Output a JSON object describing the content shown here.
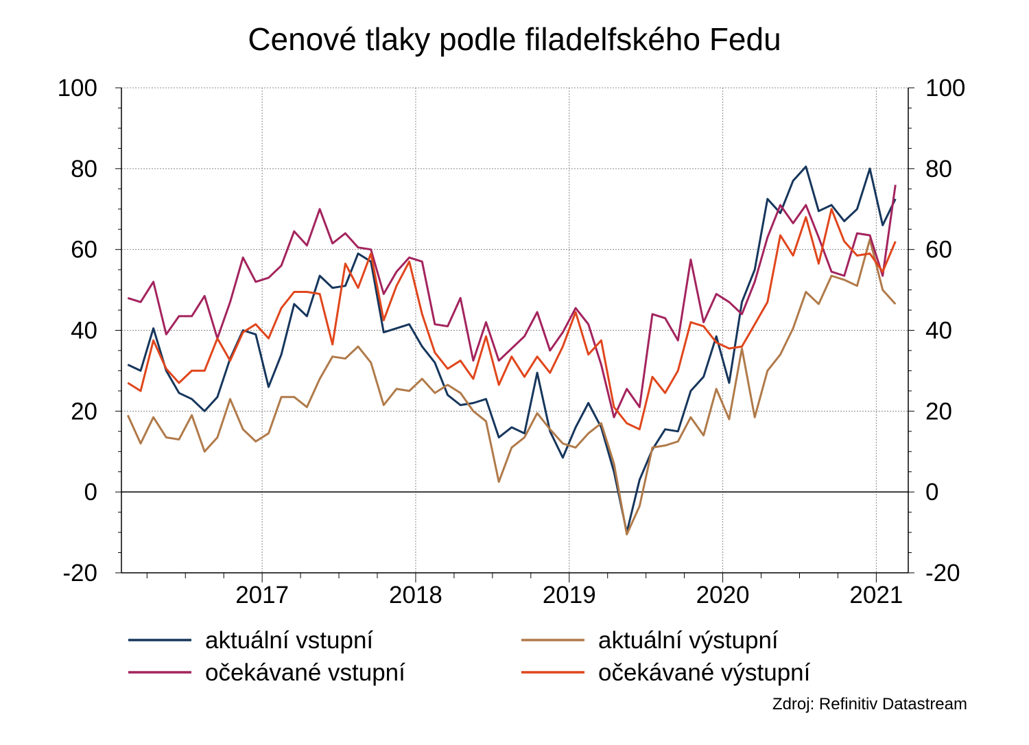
{
  "chart_data": {
    "type": "line",
    "title": "Cenové tlaky podle filadelfského Fedu",
    "source": "Zdroj: Refinitiv Datastream",
    "ylim": [
      -20,
      100
    ],
    "yticks": [
      "100",
      "80",
      "60",
      "40",
      "20",
      "0",
      "-20"
    ],
    "ytick_values": [
      100,
      80,
      60,
      40,
      20,
      0,
      -20
    ],
    "year_labels": [
      "2017",
      "2018",
      "2019",
      "2020",
      "2021"
    ],
    "grid": true,
    "legend_position": "bottom",
    "x_start": "2016-08",
    "x_end": "2021-08",
    "series": [
      {
        "name": "aktuální vstupní",
        "color": "#16365C",
        "values": [
          31.5,
          30,
          40.5,
          30,
          24.5,
          23,
          20,
          23.5,
          33,
          40,
          39,
          26,
          34,
          46.5,
          43.5,
          53.5,
          50.5,
          51,
          59,
          57,
          39.5,
          40.5,
          41.5,
          36,
          32,
          24,
          21.5,
          22,
          23,
          13.5,
          16,
          14.5,
          29.5,
          15,
          8.5,
          16,
          22,
          16,
          5,
          -10,
          3,
          10.5,
          15.5,
          15,
          25,
          28.5,
          38.5,
          27,
          47,
          55,
          72.5,
          69,
          77,
          80.5,
          69.5,
          71,
          67,
          70,
          80,
          66,
          72.5
        ]
      },
      {
        "name": "aktuální výstupní",
        "color": "#B07A4A",
        "values": [
          19,
          12,
          18.5,
          13.5,
          13,
          19,
          10,
          13.5,
          23,
          15.5,
          12.5,
          14.5,
          23.5,
          23.5,
          21,
          28,
          33.5,
          33,
          36,
          32,
          21.5,
          25.5,
          25,
          28,
          24.5,
          26.5,
          24.5,
          20,
          17.5,
          2.5,
          11,
          13.5,
          19.5,
          15.5,
          12,
          11,
          14.5,
          17,
          7,
          -10.5,
          -3.5,
          11,
          11.5,
          12.5,
          18.5,
          14,
          25.5,
          18,
          35.5,
          18.5,
          30,
          34,
          40.5,
          49.5,
          46.5,
          53.5,
          52.5,
          51,
          62.5,
          50,
          46.5
        ]
      },
      {
        "name": "očekávané vstupní",
        "color": "#A3245E",
        "values": [
          48,
          47,
          52,
          39,
          43.5,
          43.5,
          48.5,
          38,
          47,
          58,
          52,
          53,
          56,
          64.5,
          61,
          70,
          61.5,
          64,
          60.5,
          60,
          49,
          54.5,
          58,
          57,
          41.5,
          41,
          48,
          32.5,
          42,
          32.5,
          35.5,
          38.5,
          44.5,
          35,
          39.5,
          45.5,
          41.5,
          31.5,
          18.5,
          25.5,
          21,
          44,
          43,
          37.5,
          57.5,
          42,
          49,
          47,
          44,
          52,
          63,
          71,
          66.5,
          71,
          63,
          54.5,
          53.5,
          64,
          63.5,
          53.5,
          76
        ]
      },
      {
        "name": "očekávané výstupní",
        "color": "#E0461C",
        "values": [
          27,
          25,
          37.5,
          30.5,
          27,
          30,
          30,
          38,
          32.5,
          39.5,
          41.5,
          38,
          45.5,
          49.5,
          49.5,
          49,
          36.5,
          56.5,
          50.5,
          59,
          42.5,
          51,
          57,
          44,
          34.5,
          30.5,
          32.5,
          28,
          38.5,
          26.5,
          33.5,
          28.5,
          33.5,
          29.5,
          36,
          44.5,
          34,
          37.5,
          21,
          17,
          15.5,
          28.5,
          24.5,
          30,
          42,
          41,
          37,
          35.5,
          36,
          41.5,
          47,
          63.5,
          58.5,
          68,
          56.5,
          70,
          62,
          58.5,
          59,
          54.5,
          62
        ]
      }
    ]
  }
}
